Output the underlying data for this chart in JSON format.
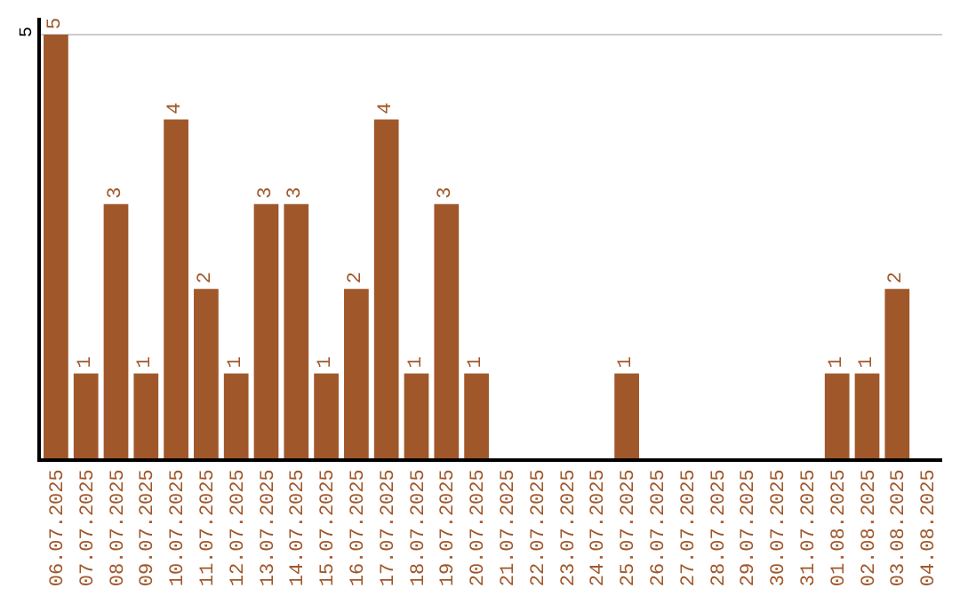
{
  "chart_data": {
    "type": "bar",
    "categories": [
      "06.07.2025",
      "07.07.2025",
      "08.07.2025",
      "09.07.2025",
      "10.07.2025",
      "11.07.2025",
      "12.07.2025",
      "13.07.2025",
      "14.07.2025",
      "15.07.2025",
      "16.07.2025",
      "17.07.2025",
      "18.07.2025",
      "19.07.2025",
      "20.07.2025",
      "21.07.2025",
      "22.07.2025",
      "23.07.2025",
      "24.07.2025",
      "25.07.2025",
      "26.07.2025",
      "27.07.2025",
      "28.07.2025",
      "29.07.2025",
      "30.07.2025",
      "31.07.2025",
      "01.08.2025",
      "02.08.2025",
      "03.08.2025",
      "04.08.2025"
    ],
    "values": [
      5,
      1,
      3,
      1,
      4,
      2,
      1,
      3,
      3,
      1,
      2,
      4,
      1,
      3,
      1,
      0,
      0,
      0,
      0,
      1,
      0,
      0,
      0,
      0,
      0,
      0,
      1,
      1,
      2,
      0
    ],
    "value_labels": [
      "5",
      "1",
      "3",
      "1",
      "4",
      "2",
      "1",
      "3",
      "3",
      "1",
      "2",
      "4",
      "1",
      "3",
      "1",
      null,
      null,
      null,
      null,
      "1",
      null,
      null,
      null,
      null,
      null,
      null,
      "1",
      "1",
      "2",
      null
    ],
    "color": "#a0572a",
    "ylim": [
      0,
      5.2
    ],
    "yticks": [
      5
    ],
    "grid": "y"
  }
}
